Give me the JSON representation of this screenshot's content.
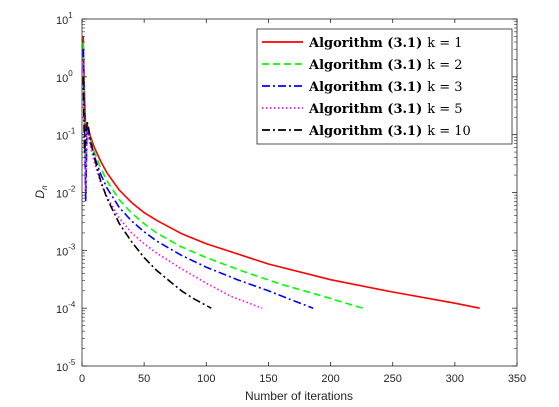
{
  "chart_data": {
    "type": "line",
    "xlabel": "Number of iterations",
    "ylabel": "D",
    "ylabel_subscript": "n",
    "xlim": [
      0,
      350
    ],
    "ylim": [
      1e-05,
      10
    ],
    "yscale": "log",
    "grid": false,
    "legend_placement": "top-right",
    "x_ticks": [
      "0",
      "50",
      "100",
      "150",
      "200",
      "250",
      "300",
      "350"
    ],
    "y_ticks": [
      {
        "base": "10",
        "exp": "1",
        "value": 10
      },
      {
        "base": "10",
        "exp": "0",
        "value": 1
      },
      {
        "base": "10",
        "exp": "-1",
        "value": 0.1
      },
      {
        "base": "10",
        "exp": "-2",
        "value": 0.01
      },
      {
        "base": "10",
        "exp": "-3",
        "value": 0.001
      },
      {
        "base": "10",
        "exp": "-4",
        "value": 0.0001
      },
      {
        "base": "10",
        "exp": "-5",
        "value": 1e-05
      }
    ],
    "series": [
      {
        "name_prefix": "Algorithm (3.1)",
        "name_suffix": "k = 1",
        "color": "#ff0000",
        "dash": "solid",
        "x": [
          1,
          2,
          3,
          4,
          5,
          7,
          10,
          15,
          20,
          30,
          40,
          50,
          60,
          80,
          100,
          150,
          200,
          250,
          300,
          320
        ],
        "y": [
          5,
          0.5,
          0.12,
          0.15,
          0.13,
          0.09,
          0.06,
          0.035,
          0.022,
          0.011,
          0.0067,
          0.0045,
          0.0033,
          0.00195,
          0.0013,
          0.00058,
          0.00031,
          0.00019,
          0.000122,
          0.0001
        ]
      },
      {
        "name_prefix": "Algorithm (3.1)",
        "name_suffix": "k = 2",
        "color": "#00ff00",
        "dash": "dashed",
        "x": [
          1,
          2,
          3,
          4,
          5,
          7,
          10,
          15,
          20,
          30,
          40,
          50,
          60,
          80,
          100,
          130,
          160,
          190,
          226
        ],
        "y": [
          4,
          0.3,
          0.008,
          0.14,
          0.12,
          0.08,
          0.05,
          0.027,
          0.016,
          0.0075,
          0.0044,
          0.0029,
          0.002,
          0.00115,
          0.00075,
          0.00043,
          0.00026,
          0.00017,
          0.0001
        ]
      },
      {
        "name_prefix": "Algorithm (3.1)",
        "name_suffix": "k = 3",
        "color": "#0000ff",
        "dash": "dashdot",
        "x": [
          1,
          2,
          3,
          4,
          5,
          7,
          10,
          15,
          20,
          30,
          40,
          50,
          60,
          80,
          100,
          125,
          150,
          170,
          186
        ],
        "y": [
          3,
          0.2,
          0.007,
          0.13,
          0.11,
          0.07,
          0.042,
          0.021,
          0.012,
          0.0055,
          0.0032,
          0.0021,
          0.00145,
          0.00082,
          0.00051,
          0.00031,
          0.0002,
          0.000135,
          0.0001
        ]
      },
      {
        "name_prefix": "Algorithm (3.1)",
        "name_suffix": "k = 5",
        "color": "#ff00ff",
        "dash": "dotted",
        "x": [
          1,
          2,
          3,
          4,
          5,
          7,
          10,
          15,
          20,
          30,
          40,
          50,
          60,
          80,
          100,
          120,
          145
        ],
        "y": [
          2,
          0.1,
          0.01,
          0.12,
          0.1,
          0.06,
          0.033,
          0.015,
          0.0085,
          0.0036,
          0.002,
          0.0013,
          0.0009,
          0.00048,
          0.00027,
          0.00016,
          0.0001
        ]
      },
      {
        "name_prefix": "Algorithm (3.1)",
        "name_suffix": "k = 10",
        "color": "#000000",
        "dash": "dashdot",
        "x": [
          1,
          2,
          3,
          4,
          5,
          7,
          10,
          15,
          20,
          30,
          40,
          50,
          60,
          70,
          80,
          90,
          104
        ],
        "y": [
          1,
          0.05,
          0.1,
          0.17,
          0.14,
          0.08,
          0.04,
          0.016,
          0.008,
          0.0029,
          0.0014,
          0.00075,
          0.00045,
          0.0003,
          0.0002,
          0.000145,
          0.0001
        ]
      }
    ]
  }
}
